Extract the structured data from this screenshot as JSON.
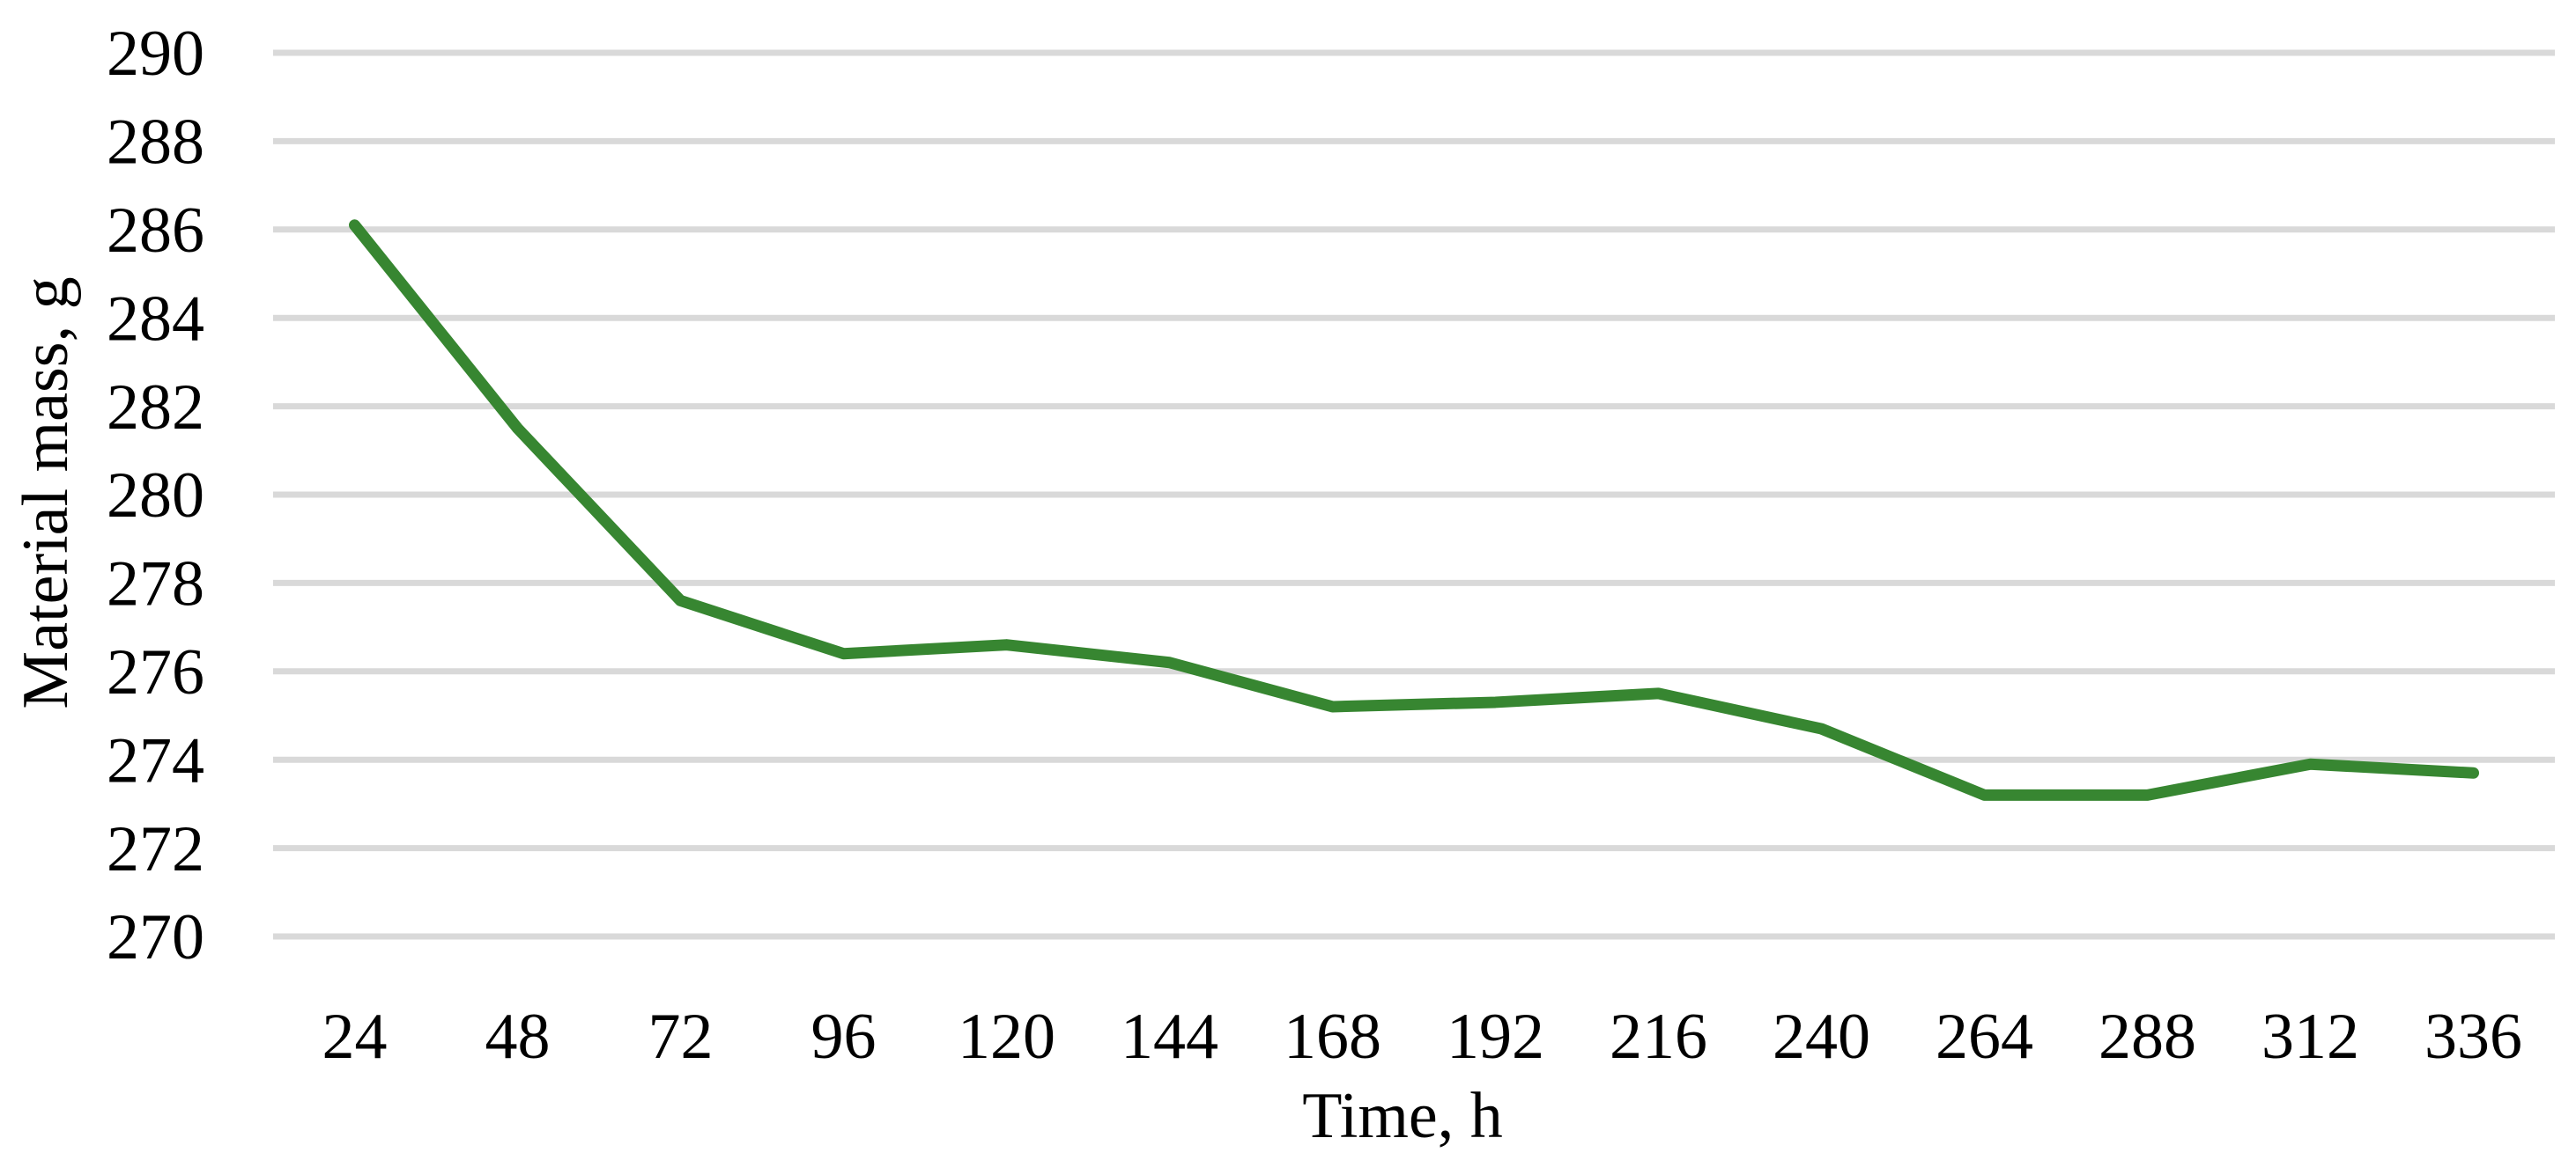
{
  "figure": {
    "background_color": "#ffffff",
    "text_color": "#000000"
  },
  "chart_data": {
    "type": "line",
    "title": "",
    "xlabel": "Time, h",
    "ylabel": "Material mass, g",
    "categories": [
      24,
      48,
      72,
      96,
      120,
      144,
      168,
      192,
      216,
      240,
      264,
      288,
      312,
      336
    ],
    "series": [
      {
        "name": "Material mass",
        "color": "#378631",
        "stroke_width": 13,
        "values": [
          286.1,
          281.5,
          277.6,
          276.4,
          276.6,
          276.2,
          275.2,
          275.3,
          275.5,
          274.7,
          273.2,
          273.2,
          273.9,
          273.7
        ]
      }
    ],
    "ylim": [
      270,
      290
    ],
    "ytick_step": 2,
    "ytick_labels": [
      "290",
      "288",
      "286",
      "284",
      "282",
      "280",
      "278",
      "276",
      "274",
      "272",
      "270"
    ],
    "grid": "horizontal",
    "gridline_color": "#d9d9d9",
    "legend_position": "none",
    "marker": "none",
    "line_cap": "round"
  }
}
